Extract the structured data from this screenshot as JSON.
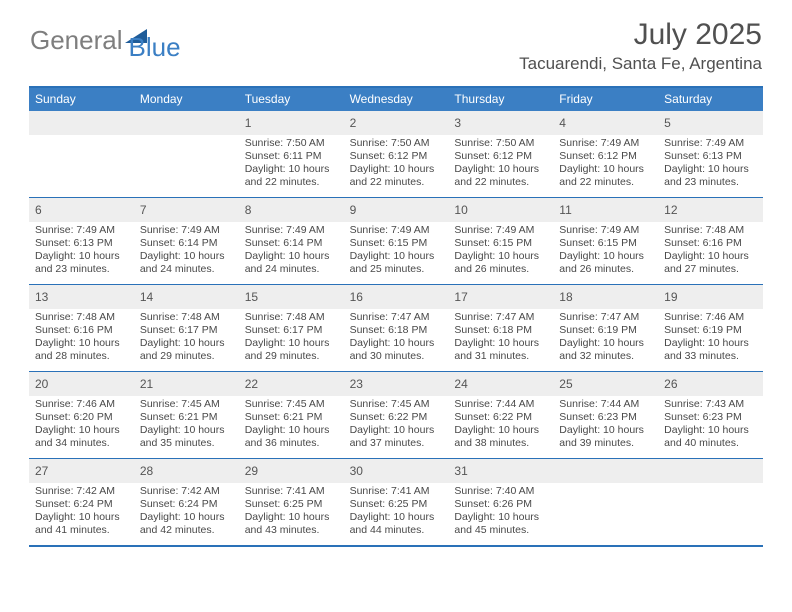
{
  "brand": {
    "part1": "General",
    "part2": "Blue"
  },
  "title": "July 2025",
  "location": "Tacuarendi, Santa Fe, Argentina",
  "colors": {
    "header_bg": "#3b7fc4",
    "border": "#2a71b8",
    "daynum_bg": "#eeeeee",
    "text": "#494949",
    "title_text": "#505050"
  },
  "day_names": [
    "Sunday",
    "Monday",
    "Tuesday",
    "Wednesday",
    "Thursday",
    "Friday",
    "Saturday"
  ],
  "first_weekday": 2,
  "days": [
    {
      "n": 1,
      "sr": "7:50 AM",
      "ss": "6:11 PM",
      "dl": "10 hours and 22 minutes."
    },
    {
      "n": 2,
      "sr": "7:50 AM",
      "ss": "6:12 PM",
      "dl": "10 hours and 22 minutes."
    },
    {
      "n": 3,
      "sr": "7:50 AM",
      "ss": "6:12 PM",
      "dl": "10 hours and 22 minutes."
    },
    {
      "n": 4,
      "sr": "7:49 AM",
      "ss": "6:12 PM",
      "dl": "10 hours and 22 minutes."
    },
    {
      "n": 5,
      "sr": "7:49 AM",
      "ss": "6:13 PM",
      "dl": "10 hours and 23 minutes."
    },
    {
      "n": 6,
      "sr": "7:49 AM",
      "ss": "6:13 PM",
      "dl": "10 hours and 23 minutes."
    },
    {
      "n": 7,
      "sr": "7:49 AM",
      "ss": "6:14 PM",
      "dl": "10 hours and 24 minutes."
    },
    {
      "n": 8,
      "sr": "7:49 AM",
      "ss": "6:14 PM",
      "dl": "10 hours and 24 minutes."
    },
    {
      "n": 9,
      "sr": "7:49 AM",
      "ss": "6:15 PM",
      "dl": "10 hours and 25 minutes."
    },
    {
      "n": 10,
      "sr": "7:49 AM",
      "ss": "6:15 PM",
      "dl": "10 hours and 26 minutes."
    },
    {
      "n": 11,
      "sr": "7:49 AM",
      "ss": "6:15 PM",
      "dl": "10 hours and 26 minutes."
    },
    {
      "n": 12,
      "sr": "7:48 AM",
      "ss": "6:16 PM",
      "dl": "10 hours and 27 minutes."
    },
    {
      "n": 13,
      "sr": "7:48 AM",
      "ss": "6:16 PM",
      "dl": "10 hours and 28 minutes."
    },
    {
      "n": 14,
      "sr": "7:48 AM",
      "ss": "6:17 PM",
      "dl": "10 hours and 29 minutes."
    },
    {
      "n": 15,
      "sr": "7:48 AM",
      "ss": "6:17 PM",
      "dl": "10 hours and 29 minutes."
    },
    {
      "n": 16,
      "sr": "7:47 AM",
      "ss": "6:18 PM",
      "dl": "10 hours and 30 minutes."
    },
    {
      "n": 17,
      "sr": "7:47 AM",
      "ss": "6:18 PM",
      "dl": "10 hours and 31 minutes."
    },
    {
      "n": 18,
      "sr": "7:47 AM",
      "ss": "6:19 PM",
      "dl": "10 hours and 32 minutes."
    },
    {
      "n": 19,
      "sr": "7:46 AM",
      "ss": "6:19 PM",
      "dl": "10 hours and 33 minutes."
    },
    {
      "n": 20,
      "sr": "7:46 AM",
      "ss": "6:20 PM",
      "dl": "10 hours and 34 minutes."
    },
    {
      "n": 21,
      "sr": "7:45 AM",
      "ss": "6:21 PM",
      "dl": "10 hours and 35 minutes."
    },
    {
      "n": 22,
      "sr": "7:45 AM",
      "ss": "6:21 PM",
      "dl": "10 hours and 36 minutes."
    },
    {
      "n": 23,
      "sr": "7:45 AM",
      "ss": "6:22 PM",
      "dl": "10 hours and 37 minutes."
    },
    {
      "n": 24,
      "sr": "7:44 AM",
      "ss": "6:22 PM",
      "dl": "10 hours and 38 minutes."
    },
    {
      "n": 25,
      "sr": "7:44 AM",
      "ss": "6:23 PM",
      "dl": "10 hours and 39 minutes."
    },
    {
      "n": 26,
      "sr": "7:43 AM",
      "ss": "6:23 PM",
      "dl": "10 hours and 40 minutes."
    },
    {
      "n": 27,
      "sr": "7:42 AM",
      "ss": "6:24 PM",
      "dl": "10 hours and 41 minutes."
    },
    {
      "n": 28,
      "sr": "7:42 AM",
      "ss": "6:24 PM",
      "dl": "10 hours and 42 minutes."
    },
    {
      "n": 29,
      "sr": "7:41 AM",
      "ss": "6:25 PM",
      "dl": "10 hours and 43 minutes."
    },
    {
      "n": 30,
      "sr": "7:41 AM",
      "ss": "6:25 PM",
      "dl": "10 hours and 44 minutes."
    },
    {
      "n": 31,
      "sr": "7:40 AM",
      "ss": "6:26 PM",
      "dl": "10 hours and 45 minutes."
    }
  ],
  "labels": {
    "sunrise": "Sunrise:",
    "sunset": "Sunset:",
    "daylight": "Daylight:"
  }
}
